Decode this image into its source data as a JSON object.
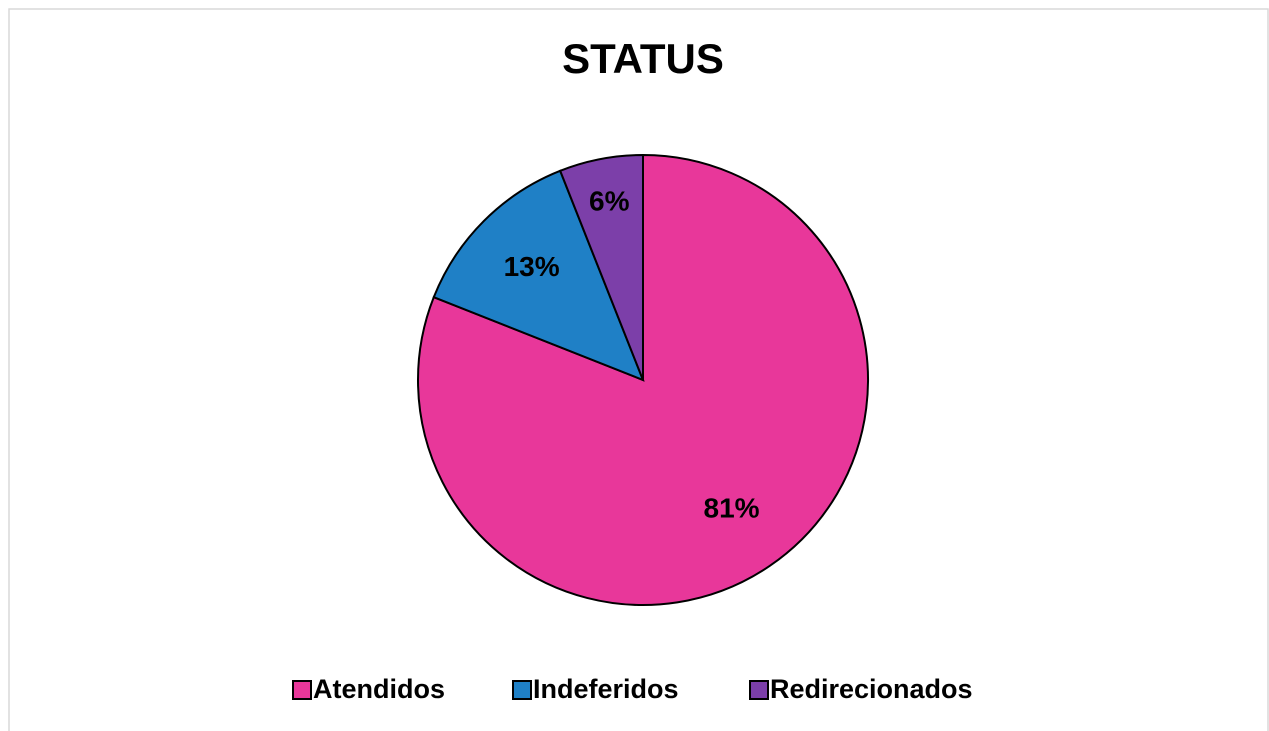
{
  "chart_data": {
    "type": "pie",
    "title": "STATUS",
    "categories": [
      "Atendidos",
      "Indeferidos",
      "Redirecionados"
    ],
    "values": [
      81,
      13,
      6
    ],
    "value_labels": [
      "81%",
      "13%",
      "6%"
    ],
    "colors": [
      "#e8379a",
      "#1f80c6",
      "#7c3fa9"
    ],
    "legend": "bottom"
  }
}
